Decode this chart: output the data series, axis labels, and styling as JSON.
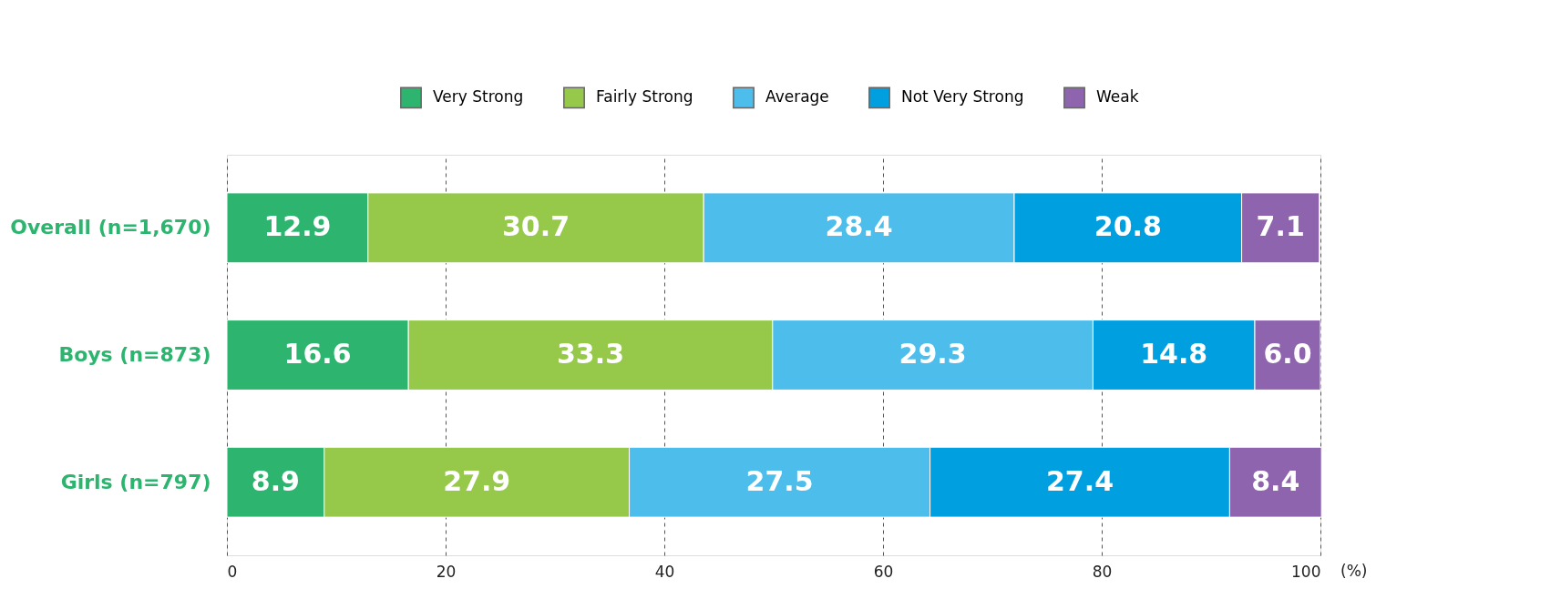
{
  "chart_data": {
    "type": "bar",
    "orientation": "horizontal",
    "stacked": true,
    "categories": [
      "Overall (n=1,670)",
      "Boys (n=873)",
      "Girls (n=797)"
    ],
    "series": [
      {
        "name": "Very Strong",
        "color": "#2db56f",
        "values": [
          12.9,
          16.6,
          8.9
        ],
        "value_labels": [
          "12.9",
          "16.6",
          "8.9"
        ]
      },
      {
        "name": "Fairly Strong",
        "color": "#96c94a",
        "values": [
          30.7,
          33.3,
          27.9
        ],
        "value_labels": [
          "30.7",
          "33.3",
          "27.9"
        ]
      },
      {
        "name": "Average",
        "color": "#4dbdec",
        "values": [
          28.4,
          29.3,
          27.5
        ],
        "value_labels": [
          "28.4",
          "29.3",
          "27.5"
        ]
      },
      {
        "name": "Not Very Strong",
        "color": "#009fe0",
        "values": [
          20.8,
          14.8,
          27.4
        ],
        "value_labels": [
          "20.8",
          "14.8",
          "27.4"
        ]
      },
      {
        "name": "Weak",
        "color": "#8e64ae",
        "values": [
          7.1,
          6.0,
          8.4
        ],
        "value_labels": [
          "7.1",
          "6.0",
          "8.4"
        ]
      }
    ],
    "xlim": [
      0,
      100
    ],
    "xticks": [
      0,
      20,
      40,
      60,
      80,
      100
    ],
    "xlabel": "(%)",
    "grid": "x",
    "legend": "top right"
  }
}
